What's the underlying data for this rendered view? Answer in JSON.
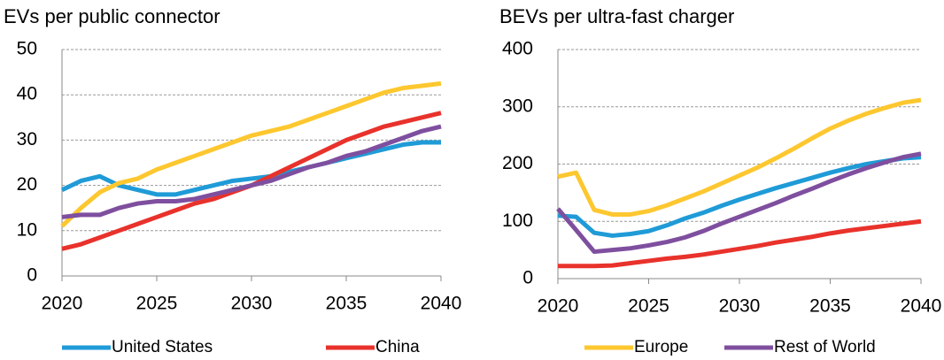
{
  "chart_data": [
    {
      "type": "line",
      "title": "EVs per public connector",
      "x": [
        2020,
        2021,
        2022,
        2023,
        2024,
        2025,
        2026,
        2027,
        2028,
        2029,
        2030,
        2031,
        2032,
        2033,
        2034,
        2035,
        2036,
        2037,
        2038,
        2039,
        2040
      ],
      "xlim": [
        2020,
        2040
      ],
      "xticks": [
        2020,
        2025,
        2030,
        2035,
        2040
      ],
      "ylim": [
        0,
        50
      ],
      "yticks": [
        0,
        10,
        20,
        30,
        40,
        50
      ],
      "grid": true,
      "series": [
        {
          "name": "United States",
          "color": "#1f9bd7",
          "values": [
            19,
            21,
            22,
            20,
            19,
            18,
            18,
            19,
            20,
            21,
            21.5,
            22,
            23,
            24,
            25,
            26,
            27,
            28,
            29,
            29.5,
            29.5
          ]
        },
        {
          "name": "China",
          "color": "#e8322b",
          "values": [
            6,
            7,
            8.5,
            10,
            11.5,
            13,
            14.5,
            16,
            17,
            18.5,
            20,
            22,
            24,
            26,
            28,
            30,
            31.5,
            33,
            34,
            35,
            36
          ]
        },
        {
          "name": "Europe",
          "color": "#fdc72f",
          "values": [
            11,
            15,
            18.5,
            20.5,
            21.5,
            23.5,
            25,
            26.5,
            28,
            29.5,
            31,
            32,
            33,
            34.5,
            36,
            37.5,
            39,
            40.5,
            41.5,
            42,
            42.5
          ]
        },
        {
          "name": "Rest of World",
          "color": "#7f4f9f",
          "values": [
            13,
            13.5,
            13.5,
            15,
            16,
            16.5,
            16.5,
            17,
            18,
            19,
            20,
            21,
            22.5,
            24,
            25,
            26.5,
            27.5,
            29,
            30.5,
            32,
            33
          ]
        }
      ]
    },
    {
      "type": "line",
      "title": "BEVs per ultra-fast  charger",
      "x": [
        2020,
        2021,
        2022,
        2023,
        2024,
        2025,
        2026,
        2027,
        2028,
        2029,
        2030,
        2031,
        2032,
        2033,
        2034,
        2035,
        2036,
        2037,
        2038,
        2039,
        2040
      ],
      "xlim": [
        2020,
        2040
      ],
      "xticks": [
        2020,
        2025,
        2030,
        2035,
        2040
      ],
      "ylim": [
        0,
        400
      ],
      "yticks": [
        0,
        100,
        200,
        300,
        400
      ],
      "grid": true,
      "series": [
        {
          "color": "#1f9bd7",
          "values": [
            110,
            108,
            80,
            75,
            78,
            83,
            93,
            105,
            115,
            127,
            138,
            148,
            158,
            167,
            176,
            185,
            193,
            200,
            205,
            210,
            212
          ]
        },
        {
          "color": "#e8322b",
          "values": [
            22,
            22,
            22,
            23,
            27,
            31,
            35,
            38,
            42,
            47,
            52,
            57,
            63,
            68,
            73,
            79,
            84,
            88,
            92,
            96,
            100
          ]
        },
        {
          "color": "#fdc72f",
          "values": [
            178,
            185,
            120,
            112,
            112,
            118,
            128,
            140,
            152,
            166,
            180,
            194,
            210,
            227,
            245,
            262,
            276,
            288,
            298,
            307,
            312
          ]
        },
        {
          "color": "#7f4f9f",
          "values": [
            122,
            85,
            47,
            50,
            53,
            58,
            64,
            72,
            83,
            96,
            108,
            120,
            132,
            145,
            157,
            170,
            182,
            193,
            203,
            212,
            218
          ]
        }
      ]
    }
  ]
}
